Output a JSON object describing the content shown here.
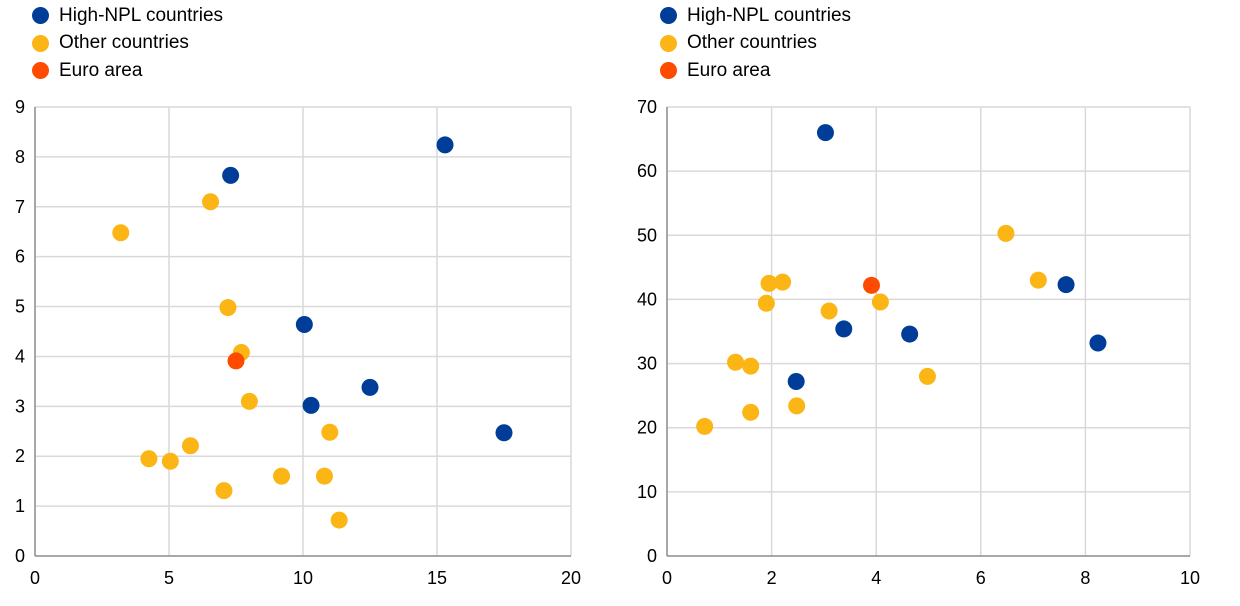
{
  "colors": {
    "high_npl": "#003d99",
    "other": "#fbb514",
    "euro_area": "#ff4b00",
    "grid": "#d9d9d9",
    "axis": "#8c8c8c"
  },
  "chart_data": [
    {
      "type": "scatter",
      "title": "",
      "xlabel": "",
      "ylabel": "",
      "xlim": [
        0,
        20
      ],
      "ylim": [
        0,
        9
      ],
      "x_ticks": [
        "0",
        "5",
        "10",
        "15",
        "20"
      ],
      "y_ticks": [
        "0",
        "1",
        "2",
        "3",
        "4",
        "5",
        "6",
        "7",
        "8",
        "9"
      ],
      "grid": true,
      "legend_position": "top-left",
      "series": [
        {
          "name": "High-NPL countries",
          "color_key": "high_npl",
          "points": [
            [
              7.3,
              7.63
            ],
            [
              15.3,
              8.24
            ],
            [
              10.05,
              4.64
            ],
            [
              10.3,
              3.02
            ],
            [
              12.5,
              3.38
            ],
            [
              17.5,
              2.47
            ]
          ]
        },
        {
          "name": "Other countries",
          "color_key": "other",
          "points": [
            [
              3.2,
              6.48
            ],
            [
              6.55,
              7.1
            ],
            [
              7.2,
              4.98
            ],
            [
              7.7,
              4.08
            ],
            [
              8.0,
              3.1
            ],
            [
              4.25,
              1.95
            ],
            [
              5.05,
              1.9
            ],
            [
              5.8,
              2.21
            ],
            [
              7.05,
              1.31
            ],
            [
              9.2,
              1.6
            ],
            [
              10.8,
              1.6
            ],
            [
              11.0,
              2.48
            ],
            [
              11.35,
              0.72
            ]
          ]
        },
        {
          "name": "Euro area",
          "color_key": "euro_area",
          "points": [
            [
              7.5,
              3.91
            ]
          ]
        }
      ]
    },
    {
      "type": "scatter",
      "title": "",
      "xlabel": "",
      "ylabel": "",
      "xlim": [
        0,
        10
      ],
      "ylim": [
        0,
        70
      ],
      "x_ticks": [
        "0",
        "2",
        "4",
        "6",
        "8",
        "10"
      ],
      "y_ticks": [
        "0",
        "10",
        "20",
        "30",
        "40",
        "50",
        "60",
        "70"
      ],
      "grid": true,
      "legend_position": "top-left",
      "series": [
        {
          "name": "High-NPL countries",
          "color_key": "high_npl",
          "points": [
            [
              3.03,
              66.0
            ],
            [
              3.38,
              35.4
            ],
            [
              2.47,
              27.2
            ],
            [
              4.64,
              34.6
            ],
            [
              7.63,
              42.3
            ],
            [
              8.24,
              33.2
            ]
          ]
        },
        {
          "name": "Other countries",
          "color_key": "other",
          "points": [
            [
              0.72,
              20.2
            ],
            [
              1.31,
              30.2
            ],
            [
              1.6,
              29.6
            ],
            [
              1.6,
              22.4
            ],
            [
              1.9,
              39.4
            ],
            [
              1.95,
              42.5
            ],
            [
              2.21,
              42.7
            ],
            [
              2.48,
              23.4
            ],
            [
              3.1,
              38.2
            ],
            [
              4.08,
              39.6
            ],
            [
              4.98,
              28.0
            ],
            [
              6.48,
              50.3
            ],
            [
              7.1,
              43.0
            ]
          ]
        },
        {
          "name": "Euro area",
          "color_key": "euro_area",
          "points": [
            [
              3.91,
              42.2
            ]
          ]
        }
      ]
    }
  ]
}
